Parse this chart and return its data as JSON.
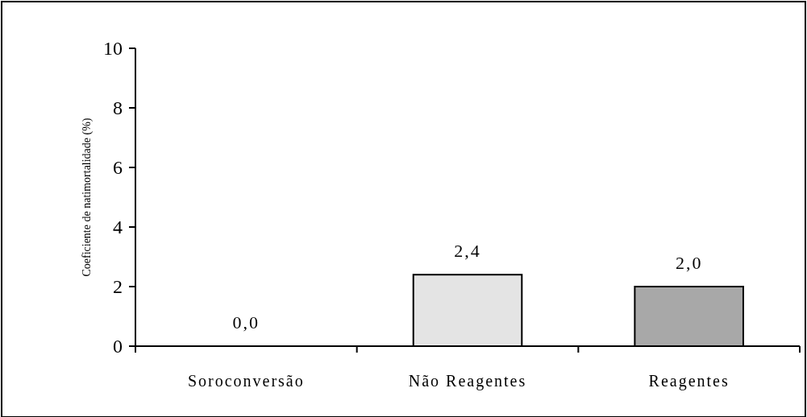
{
  "chart_data": {
    "type": "bar",
    "ylabel": "Coeficiente de natimortalidade (%)",
    "categories": [
      "Soroconversão",
      "Não Reagentes",
      "Reagentes"
    ],
    "values": [
      0.0,
      2.4,
      2.0
    ],
    "colors": [
      "#ffffff",
      "#e4e4e4",
      "#a8a8a8"
    ],
    "value_labels": [
      "0,0",
      "2,4",
      "2,0"
    ],
    "ylim": [
      0,
      10
    ],
    "yticks": [
      0,
      2,
      4,
      6,
      8,
      10
    ],
    "grid": false
  }
}
